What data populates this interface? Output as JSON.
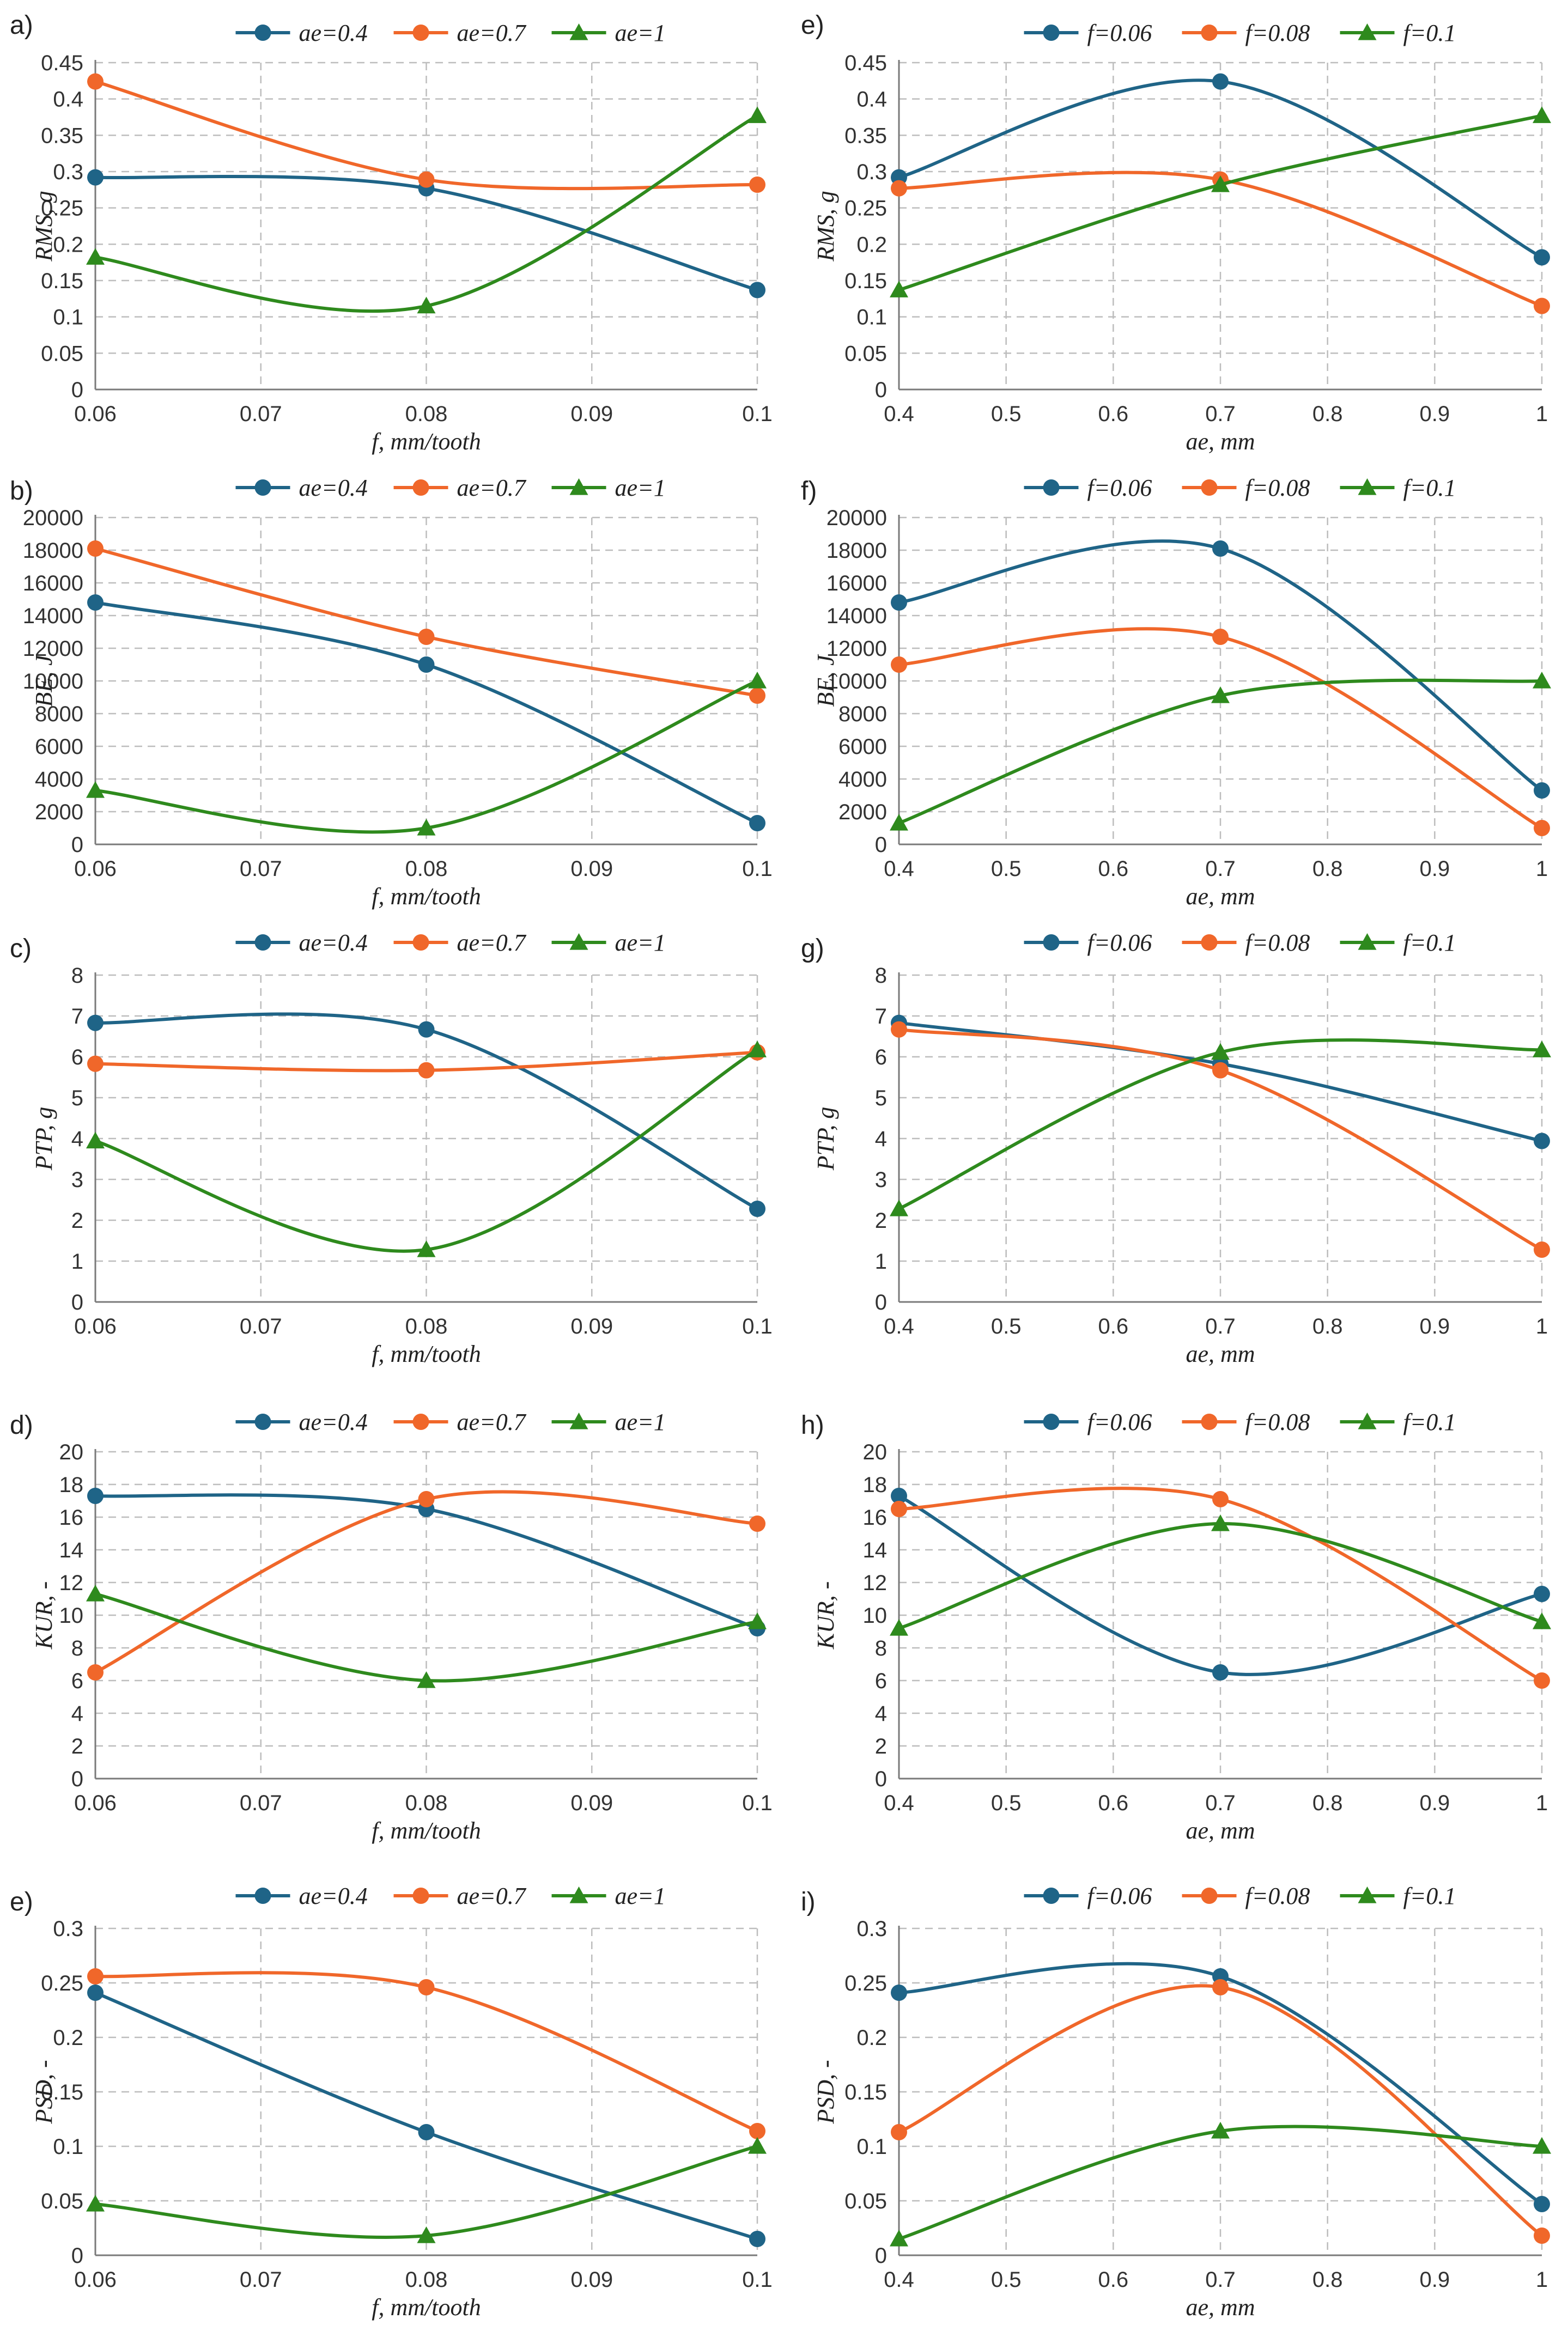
{
  "colors": {
    "blue": "#1f6487",
    "orange": "#f0672a",
    "green": "#2e8a1d"
  },
  "chart_data": [
    {
      "id": "a",
      "panel_label": "a)",
      "type": "line",
      "x": [
        0.06,
        0.08,
        0.1
      ],
      "xlim": [
        0.06,
        0.1
      ],
      "xticks": [
        "0.06",
        "0.07",
        "0.08",
        "0.09",
        "0.1"
      ],
      "yticks": [
        "0",
        "0.05",
        "0.1",
        "0.15",
        "0.2",
        "0.25",
        "0.3",
        "0.35",
        "0.4",
        "0.45"
      ],
      "ylim": [
        0,
        0.45
      ],
      "xlabel": "f, mm/tooth",
      "ylabel": "RMS, g",
      "grid": true,
      "legend": "top",
      "series": [
        {
          "name": "ae=0.4",
          "color": "blue",
          "marker": "circle",
          "values": [
            0.292,
            0.277,
            0.137
          ]
        },
        {
          "name": "ae=0.7",
          "color": "orange",
          "marker": "circle",
          "values": [
            0.424,
            0.289,
            0.282
          ]
        },
        {
          "name": "ae=1",
          "color": "green",
          "marker": "triangle",
          "values": [
            0.182,
            0.115,
            0.377
          ]
        }
      ]
    },
    {
      "id": "e_top",
      "panel_label": "e)",
      "type": "line",
      "x": [
        0.4,
        0.7,
        1
      ],
      "xlim": [
        0.4,
        1
      ],
      "xticks": [
        "0.4",
        "0.5",
        "0.6",
        "0.7",
        "0.8",
        "0.9",
        "1"
      ],
      "yticks": [
        "0",
        "0.05",
        "0.1",
        "0.15",
        "0.2",
        "0.25",
        "0.3",
        "0.35",
        "0.4",
        "0.45"
      ],
      "ylim": [
        0,
        0.45
      ],
      "xlabel": "ae, mm",
      "ylabel": "RMS, g",
      "grid": true,
      "legend": "top",
      "series": [
        {
          "name": "f=0.06",
          "color": "blue",
          "marker": "circle",
          "values": [
            0.292,
            0.424,
            0.182
          ]
        },
        {
          "name": "f=0.08",
          "color": "orange",
          "marker": "circle",
          "values": [
            0.277,
            0.289,
            0.115
          ]
        },
        {
          "name": "f=0.1",
          "color": "green",
          "marker": "triangle",
          "values": [
            0.137,
            0.282,
            0.377
          ]
        }
      ]
    },
    {
      "id": "b",
      "panel_label": "b)",
      "type": "line",
      "x": [
        0.06,
        0.08,
        0.1
      ],
      "xlim": [
        0.06,
        0.1
      ],
      "xticks": [
        "0.06",
        "0.07",
        "0.08",
        "0.09",
        "0.1"
      ],
      "yticks": [
        "0",
        "2000",
        "4000",
        "6000",
        "8000",
        "10000",
        "12000",
        "14000",
        "16000",
        "18000",
        "20000"
      ],
      "ylim": [
        0,
        20000
      ],
      "xlabel": "f, mm/tooth",
      "ylabel": "BE, J",
      "grid": true,
      "legend": "top",
      "series": [
        {
          "name": "ae=0.4",
          "color": "blue",
          "marker": "circle",
          "values": [
            14800,
            11000,
            1300
          ]
        },
        {
          "name": "ae=0.7",
          "color": "orange",
          "marker": "circle",
          "values": [
            18100,
            12700,
            9100
          ]
        },
        {
          "name": "ae=1",
          "color": "green",
          "marker": "triangle",
          "values": [
            3300,
            1000,
            10000
          ]
        }
      ]
    },
    {
      "id": "f",
      "panel_label": "f)",
      "type": "line",
      "x": [
        0.4,
        0.7,
        1
      ],
      "xlim": [
        0.4,
        1
      ],
      "xticks": [
        "0.4",
        "0.5",
        "0.6",
        "0.7",
        "0.8",
        "0.9",
        "1"
      ],
      "yticks": [
        "0",
        "2000",
        "4000",
        "6000",
        "8000",
        "10000",
        "12000",
        "14000",
        "16000",
        "18000",
        "20000"
      ],
      "ylim": [
        0,
        20000
      ],
      "xlabel": "ae, mm",
      "ylabel": "BE, J",
      "grid": true,
      "legend": "top",
      "series": [
        {
          "name": "f=0.06",
          "color": "blue",
          "marker": "circle",
          "values": [
            14800,
            18100,
            3300
          ]
        },
        {
          "name": "f=0.08",
          "color": "orange",
          "marker": "circle",
          "values": [
            11000,
            12700,
            1000
          ]
        },
        {
          "name": "f=0.1",
          "color": "green",
          "marker": "triangle",
          "values": [
            1300,
            9100,
            10000
          ]
        }
      ]
    },
    {
      "id": "c",
      "panel_label": "c)",
      "type": "line",
      "x": [
        0.06,
        0.08,
        0.1
      ],
      "xlim": [
        0.06,
        0.1
      ],
      "xticks": [
        "0.06",
        "0.07",
        "0.08",
        "0.09",
        "0.1"
      ],
      "yticks": [
        "0",
        "1",
        "2",
        "3",
        "4",
        "5",
        "6",
        "7",
        "8"
      ],
      "ylim": [
        0,
        8
      ],
      "xlabel": "f, mm/tooth",
      "ylabel": "PTP, g",
      "grid": true,
      "legend": "top",
      "series": [
        {
          "name": "ae=0.4",
          "color": "blue",
          "marker": "circle",
          "values": [
            6.83,
            6.67,
            2.28
          ]
        },
        {
          "name": "ae=0.7",
          "color": "orange",
          "marker": "circle",
          "values": [
            5.83,
            5.67,
            6.11
          ]
        },
        {
          "name": "ae=1",
          "color": "green",
          "marker": "triangle",
          "values": [
            3.94,
            1.28,
            6.17
          ]
        }
      ]
    },
    {
      "id": "g",
      "panel_label": "g)",
      "type": "line",
      "x": [
        0.4,
        0.7,
        1
      ],
      "xlim": [
        0.4,
        1
      ],
      "xticks": [
        "0.4",
        "0.5",
        "0.6",
        "0.7",
        "0.8",
        "0.9",
        "1"
      ],
      "yticks": [
        "0",
        "1",
        "2",
        "3",
        "4",
        "5",
        "6",
        "7",
        "8"
      ],
      "ylim": [
        0,
        8
      ],
      "xlabel": "ae, mm",
      "ylabel": "PTP, g",
      "grid": true,
      "legend": "top",
      "series": [
        {
          "name": "f=0.06",
          "color": "blue",
          "marker": "circle",
          "values": [
            6.83,
            5.83,
            3.94
          ]
        },
        {
          "name": "f=0.08",
          "color": "orange",
          "marker": "circle",
          "values": [
            6.67,
            5.67,
            1.28
          ]
        },
        {
          "name": "f=0.1",
          "color": "green",
          "marker": "triangle",
          "values": [
            2.28,
            6.11,
            6.17
          ]
        }
      ]
    },
    {
      "id": "d",
      "panel_label": "d)",
      "type": "line",
      "x": [
        0.06,
        0.08,
        0.1
      ],
      "xlim": [
        0.06,
        0.1
      ],
      "xticks": [
        "0.06",
        "0.07",
        "0.08",
        "0.09",
        "0.1"
      ],
      "yticks": [
        "0",
        "2",
        "4",
        "6",
        "8",
        "10",
        "12",
        "14",
        "16",
        "18",
        "20"
      ],
      "ylim": [
        0,
        20
      ],
      "xlabel": "f, mm/tooth",
      "ylabel": "KUR, -",
      "grid": true,
      "legend": "top",
      "series": [
        {
          "name": "ae=0.4",
          "color": "blue",
          "marker": "circle",
          "values": [
            17.3,
            16.5,
            9.2
          ]
        },
        {
          "name": "ae=0.7",
          "color": "orange",
          "marker": "circle",
          "values": [
            6.5,
            17.1,
            15.6
          ]
        },
        {
          "name": "ae=1",
          "color": "green",
          "marker": "triangle",
          "values": [
            11.3,
            6.0,
            9.6
          ]
        }
      ]
    },
    {
      "id": "h",
      "panel_label": "h)",
      "type": "line",
      "x": [
        0.4,
        0.7,
        1
      ],
      "xlim": [
        0.4,
        1
      ],
      "xticks": [
        "0.4",
        "0.5",
        "0.6",
        "0.7",
        "0.8",
        "0.9",
        "1"
      ],
      "yticks": [
        "0",
        "2",
        "4",
        "6",
        "8",
        "10",
        "12",
        "14",
        "16",
        "18",
        "20"
      ],
      "ylim": [
        0,
        20
      ],
      "xlabel": "ae, mm",
      "ylabel": "KUR, -",
      "grid": true,
      "legend": "top",
      "series": [
        {
          "name": "f=0.06",
          "color": "blue",
          "marker": "circle",
          "values": [
            17.3,
            6.5,
            11.3
          ]
        },
        {
          "name": "f=0.08",
          "color": "orange",
          "marker": "circle",
          "values": [
            16.5,
            17.1,
            6.0
          ]
        },
        {
          "name": "f=0.1",
          "color": "green",
          "marker": "triangle",
          "values": [
            9.2,
            15.6,
            9.6
          ]
        }
      ]
    },
    {
      "id": "e_bottom",
      "panel_label": "e)",
      "type": "line",
      "x": [
        0.06,
        0.08,
        0.1
      ],
      "xlim": [
        0.06,
        0.1
      ],
      "xticks": [
        "0.06",
        "0.07",
        "0.08",
        "0.09",
        "0.1"
      ],
      "yticks": [
        "0",
        "0.05",
        "0.1",
        "0.15",
        "0.2",
        "0.25",
        "0.3"
      ],
      "ylim": [
        0,
        0.3
      ],
      "xlabel": "f, mm/tooth",
      "ylabel": "PSD, -",
      "grid": true,
      "legend": "top",
      "series": [
        {
          "name": "ae=0.4",
          "color": "blue",
          "marker": "circle",
          "values": [
            0.241,
            0.113,
            0.015
          ]
        },
        {
          "name": "ae=0.7",
          "color": "orange",
          "marker": "circle",
          "values": [
            0.256,
            0.246,
            0.114
          ]
        },
        {
          "name": "ae=1",
          "color": "green",
          "marker": "triangle",
          "values": [
            0.047,
            0.018,
            0.1
          ]
        }
      ]
    },
    {
      "id": "i",
      "panel_label": "i)",
      "type": "line",
      "x": [
        0.4,
        0.7,
        1
      ],
      "xlim": [
        0.4,
        1
      ],
      "xticks": [
        "0.4",
        "0.5",
        "0.6",
        "0.7",
        "0.8",
        "0.9",
        "1"
      ],
      "yticks": [
        "0",
        "0.05",
        "0.1",
        "0.15",
        "0.2",
        "0.25",
        "0.3"
      ],
      "ylim": [
        0,
        0.3
      ],
      "xlabel": "ae, mm",
      "ylabel": "PSD, -",
      "grid": true,
      "legend": "top",
      "series": [
        {
          "name": "f=0.06",
          "color": "blue",
          "marker": "circle",
          "values": [
            0.241,
            0.256,
            0.047
          ]
        },
        {
          "name": "f=0.08",
          "color": "orange",
          "marker": "circle",
          "values": [
            0.113,
            0.246,
            0.018
          ]
        },
        {
          "name": "f=0.1",
          "color": "green",
          "marker": "triangle",
          "values": [
            0.015,
            0.114,
            0.1
          ]
        }
      ]
    }
  ]
}
